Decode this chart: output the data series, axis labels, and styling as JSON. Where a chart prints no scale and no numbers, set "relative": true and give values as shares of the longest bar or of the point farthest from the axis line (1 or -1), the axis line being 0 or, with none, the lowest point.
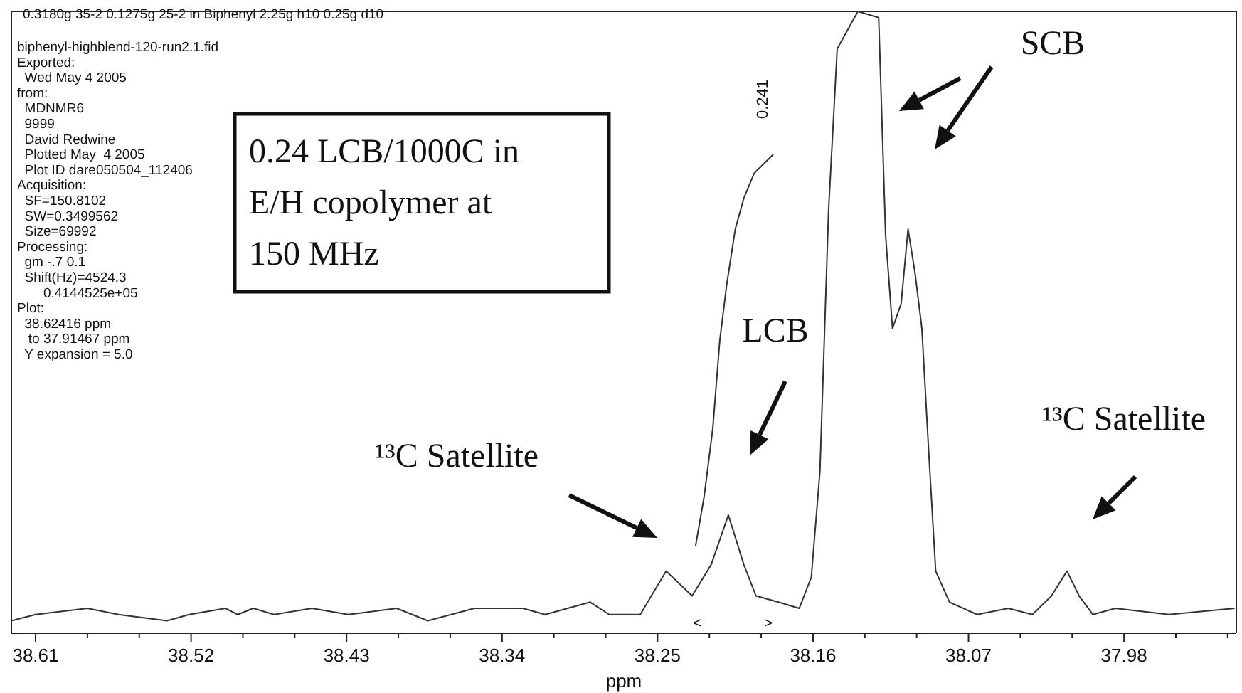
{
  "chart_data": {
    "type": "line",
    "relative": true,
    "title": "0.3180g 35-2 0.1275g 25-2 in Biphenyl 2.25g h10 0.25g d10",
    "xlabel": "ppm",
    "xlim": [
      38.624,
      37.915
    ],
    "xticks": [
      38.61,
      {
        "value": 38.58,
        "label": null
      },
      {
        "value": 38.55,
        "label": null
      },
      38.52,
      {
        "value": 38.49,
        "label": null
      },
      {
        "value": 38.46,
        "label": null
      },
      38.43,
      {
        "value": 38.4,
        "label": null
      },
      {
        "value": 38.37,
        "label": null
      },
      38.34,
      {
        "value": 38.31,
        "label": null
      },
      {
        "value": 38.28,
        "label": null
      },
      38.25,
      {
        "value": 38.22,
        "label": null
      },
      {
        "value": 38.19,
        "label": null
      },
      38.16,
      {
        "value": 38.13,
        "label": null
      },
      {
        "value": 38.1,
        "label": null
      },
      38.07,
      {
        "value": 38.04,
        "label": null
      },
      {
        "value": 38.01,
        "label": null
      },
      37.98,
      {
        "value": 37.95,
        "label": null
      },
      {
        "value": 37.92,
        "label": null
      }
    ],
    "tick_labels": "x",
    "grid": false,
    "marker": "none",
    "line_style": "solid",
    "series": [
      {
        "color": "#333333",
        "x": [
          38.624,
          38.61,
          38.58,
          38.562,
          38.534,
          38.521,
          38.5,
          38.493,
          38.484,
          38.472,
          38.45,
          38.429,
          38.401,
          38.383,
          38.356,
          38.328,
          38.315,
          38.289,
          38.278,
          38.26,
          38.245,
          38.23,
          38.219,
          38.209,
          38.2,
          38.193,
          38.18,
          38.168,
          38.161,
          38.156,
          38.151,
          38.146,
          38.134,
          38.122,
          38.118,
          38.114,
          38.109,
          38.105,
          38.101,
          38.097,
          38.093,
          38.089,
          38.081,
          38.065,
          38.047,
          38.033,
          38.022,
          38.013,
          38.006,
          37.998,
          37.985,
          37.954,
          37.916
        ],
        "values": [
          0.02,
          0.03,
          0.04,
          0.03,
          0.02,
          0.03,
          0.04,
          0.03,
          0.04,
          0.03,
          0.04,
          0.03,
          0.04,
          0.02,
          0.04,
          0.04,
          0.03,
          0.05,
          0.03,
          0.03,
          0.1,
          0.06,
          0.11,
          0.19,
          0.11,
          0.06,
          0.05,
          0.04,
          0.09,
          0.26,
          0.68,
          0.94,
          1.0,
          0.99,
          0.64,
          0.49,
          0.53,
          0.65,
          0.58,
          0.49,
          0.29,
          0.1,
          0.05,
          0.03,
          0.04,
          0.03,
          0.06,
          0.1,
          0.06,
          0.03,
          0.04,
          0.03,
          0.04
        ]
      },
      {
        "color": "#333333",
        "x": [
          38.228,
          38.223,
          38.218,
          38.214,
          38.21,
          38.205,
          38.2,
          38.194,
          38.183
        ],
        "values": [
          0.14,
          0.22,
          0.33,
          0.47,
          0.56,
          0.65,
          0.7,
          0.74,
          0.77
        ]
      }
    ],
    "annotations": [
      "biphenyl-highblend-120-run2.1.fid\nExported:\n  Wed May 4 2005\nfrom:\n  MDNMR6\n  9999\n  David Redwine\n  Plotted May  4 2005\n  Plot ID dare050504_112406\nAcquisition:\n  SF=150.8102\n  SW=0.3499562\n  Size=69992\nProcessing:\n  gm -.7 0.1\n  Shift(Hz)=4524.3\n       0.4144525e+05\nPlot:\n  38.62416 ppm\n   to 37.91467 ppm\n  Y expansion = 5.0",
      "0.24 LCB/1000C in\nE/H copolymer at\n150 MHz",
      "¹³C Satellite",
      "LCB",
      "SCB",
      "¹³C Satellite",
      "<",
      ">",
      {
        "text": "0.241",
        "x": 38.183,
        "y": 0.77
      }
    ]
  }
}
